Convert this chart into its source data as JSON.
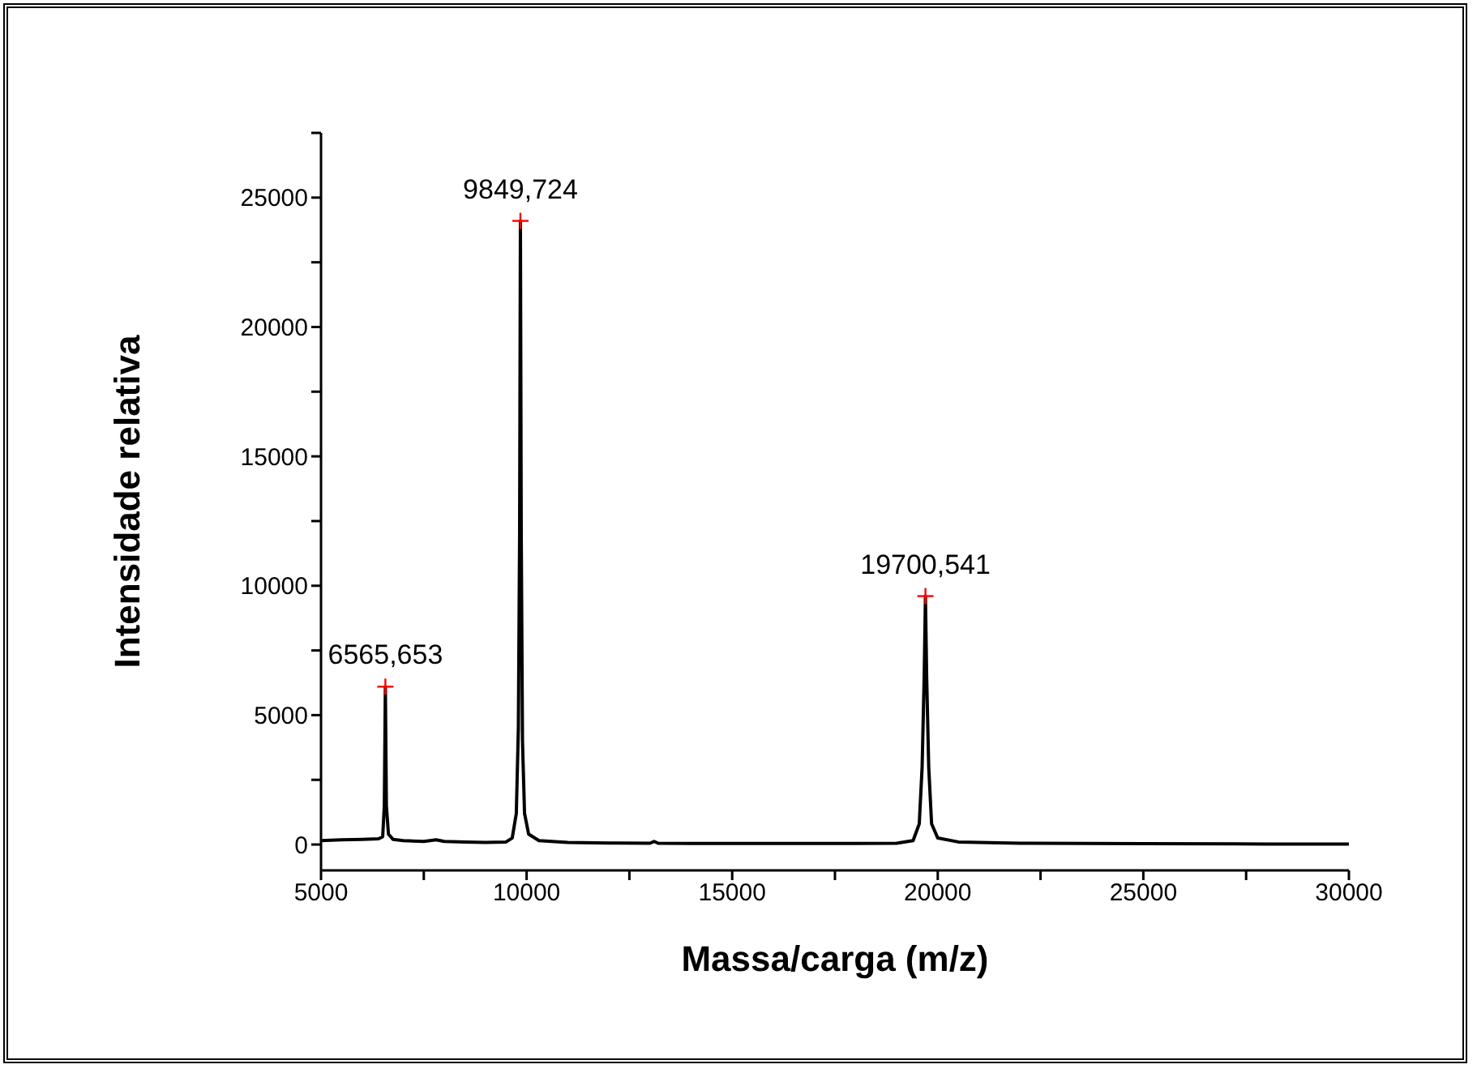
{
  "chart_data": {
    "type": "line",
    "xlabel": "Massa/carga (m/z)",
    "ylabel": "Intensidade relativa",
    "xlim": [
      5000,
      30000
    ],
    "ylim": [
      -1000,
      27500
    ],
    "xticks": [
      5000,
      {
        "value": 7500,
        "label": null
      },
      10000,
      {
        "value": 12500,
        "label": null
      },
      15000,
      {
        "value": 17500,
        "label": null
      },
      20000,
      {
        "value": 22500,
        "label": null
      },
      25000,
      {
        "value": 27500,
        "label": null
      },
      30000
    ],
    "yticks": [
      0,
      {
        "value": 2500,
        "label": null
      },
      5000,
      {
        "value": 7500,
        "label": null
      },
      10000,
      {
        "value": 12500,
        "label": null
      },
      15000,
      {
        "value": 17500,
        "label": null
      },
      20000,
      {
        "value": 22500,
        "label": null
      },
      25000,
      {
        "value": 27500,
        "label": null
      }
    ],
    "grid": false,
    "series": [
      {
        "color": "#000000",
        "marker": "none",
        "line_style": "solid",
        "x": [
          5000,
          5500,
          6000,
          6400,
          6500,
          6540,
          6565,
          6590,
          6640,
          6750,
          7000,
          7500,
          7800,
          8000,
          8500,
          9000,
          9500,
          9650,
          9750,
          9800,
          9830,
          9849.724,
          9870,
          9900,
          9950,
          10050,
          10300,
          11000,
          12000,
          13000,
          13100,
          13200,
          14000,
          16000,
          18000,
          19000,
          19400,
          19550,
          19620,
          19670,
          19700.541,
          19730,
          19780,
          19850,
          20000,
          20500,
          22000,
          25000,
          28000,
          30000
        ],
        "values": [
          150,
          180,
          200,
          220,
          300,
          1500,
          6100,
          1500,
          400,
          200,
          150,
          120,
          180,
          120,
          100,
          80,
          100,
          250,
          1200,
          4500,
          12000,
          24100,
          12000,
          4000,
          1200,
          400,
          150,
          80,
          60,
          50,
          120,
          50,
          40,
          40,
          40,
          50,
          150,
          800,
          3000,
          6500,
          9600,
          6500,
          3000,
          800,
          250,
          100,
          50,
          30,
          20,
          20
        ]
      },
      {
        "type": "scatter",
        "color": "#ff0000",
        "marker": "cross",
        "x": [
          6565.653,
          9849.724,
          19700.541
        ],
        "values": [
          6100,
          24100,
          9600
        ]
      }
    ],
    "annotations": [
      {
        "text": "6565,653",
        "x": 6565.653,
        "y": 6100
      },
      {
        "text": "9849,724",
        "x": 9849.724,
        "y": 24100
      },
      {
        "text": "19700,541",
        "x": 19700.541,
        "y": 9600
      }
    ]
  }
}
